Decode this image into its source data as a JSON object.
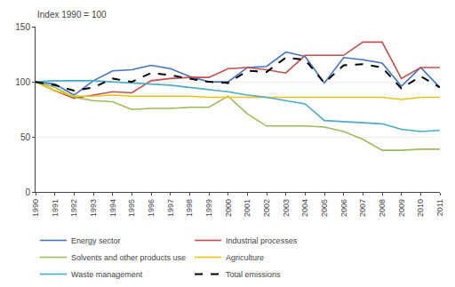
{
  "chart_data": {
    "type": "line",
    "y_label": "Index 1990 = 100",
    "x": [
      1990,
      1991,
      1992,
      1993,
      1994,
      1995,
      1996,
      1997,
      1998,
      1999,
      2000,
      2001,
      2002,
      2003,
      2004,
      2005,
      2006,
      2007,
      2008,
      2009,
      2010,
      2011
    ],
    "series": [
      {
        "name": "Energy sector",
        "color": "#4472c4",
        "line_style": "solid",
        "values": [
          100,
          98,
          88,
          101,
          110,
          111,
          115,
          112,
          105,
          100,
          100,
          113,
          114,
          127,
          123,
          99,
          122,
          120,
          117,
          96,
          113,
          95
        ]
      },
      {
        "name": "Industrial processes",
        "color": "#c0504d",
        "line_style": "solid",
        "values": [
          100,
          92,
          85,
          88,
          91,
          90,
          101,
          103,
          104,
          104,
          112,
          113,
          111,
          108,
          124,
          124,
          124,
          136,
          136,
          103,
          113,
          113
        ]
      },
      {
        "name": "Solvents and other products use",
        "color": "#9bbb59",
        "line_style": "solid",
        "values": [
          100,
          95,
          86,
          83,
          82,
          75,
          76,
          76,
          77,
          77,
          87,
          71,
          60,
          60,
          60,
          59,
          55,
          48,
          38,
          38,
          39,
          39
        ]
      },
      {
        "name": "Agriculture",
        "color": "#f2c10f",
        "line_style": "solid",
        "values": [
          100,
          92,
          87,
          87,
          88,
          87,
          87,
          87,
          87,
          86,
          86,
          86,
          86,
          86,
          86,
          86,
          86,
          86,
          86,
          84,
          86,
          86
        ]
      },
      {
        "name": "Waste management",
        "color": "#4bacc6",
        "line_style": "solid",
        "values": [
          100,
          101,
          101,
          101,
          100,
          99,
          98,
          97,
          95,
          93,
          91,
          88,
          86,
          83,
          80,
          65,
          64,
          63,
          62,
          57,
          55,
          56
        ]
      },
      {
        "name": "Total emissions",
        "color": "#000000",
        "line_style": "dashed",
        "values": [
          100,
          97,
          92,
          95,
          103,
          100,
          108,
          106,
          103,
          100,
          99,
          110,
          109,
          122,
          120,
          99,
          115,
          116,
          113,
          94,
          105,
          95
        ]
      }
    ],
    "xlim": [
      1990,
      2011
    ],
    "xticks": [
      1990,
      1991,
      1992,
      1993,
      1994,
      1995,
      1996,
      1997,
      1998,
      1999,
      2000,
      2001,
      2002,
      2003,
      2004,
      2005,
      2006,
      2007,
      2008,
      2009,
      2010,
      2011
    ],
    "ylim": [
      0,
      150
    ],
    "yticks": [
      0,
      50,
      100,
      150
    ],
    "grid": true,
    "legend": "bottom"
  }
}
